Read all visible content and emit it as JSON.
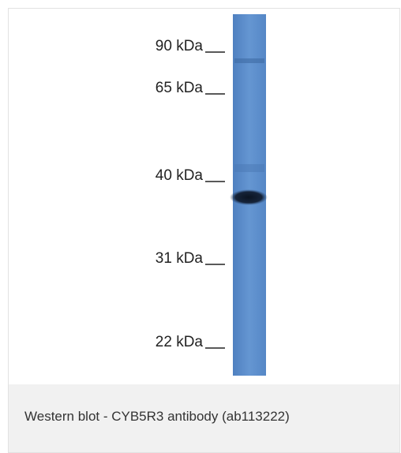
{
  "figure": {
    "markers": [
      "90 kDa",
      "65 kDa",
      "40 kDa",
      "31 kDa",
      "22 kDa"
    ],
    "caption": "Western blot - CYB5R3 antibody (ab113222)"
  }
}
